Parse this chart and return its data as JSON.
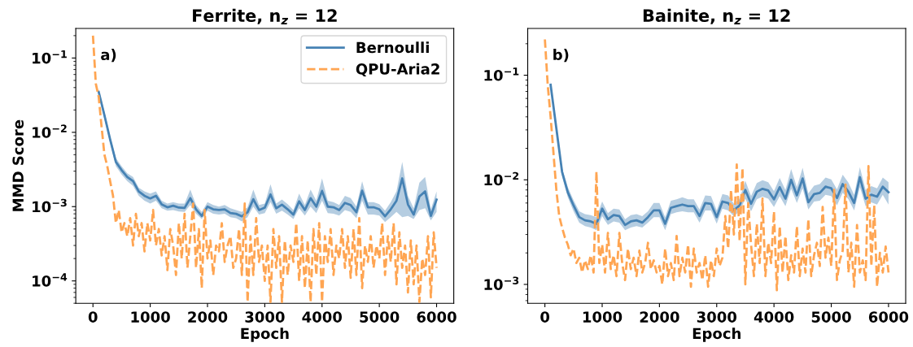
{
  "chart_data": [
    {
      "type": "line",
      "title": "Ferrite, n$_{z}$ = 12",
      "xlabel": "Epoch",
      "ylabel": "MMD Score",
      "annotations": [
        "a)"
      ],
      "log": "y",
      "legend": "top right",
      "grid": false,
      "xlim": [
        -300,
        6300
      ],
      "xticks": [
        0,
        1000,
        2000,
        3000,
        4000,
        5000,
        6000
      ],
      "ylim": [
        5e-05,
        0.25
      ],
      "yticks": [
        {
          "value": 0.1,
          "label": "10$^{−1}$"
        },
        {
          "value": 0.01,
          "label": "10$^{−2}$"
        },
        {
          "value": 0.001,
          "label": "10$^{−3}$"
        },
        {
          "value": 0.0001,
          "label": "10$^{−4}$"
        }
      ],
      "series": [
        {
          "name": "Bernoulli",
          "color": "#4682b4",
          "line_style": "solid",
          "x": [
            100,
            200,
            300,
            400,
            500,
            600,
            700,
            800,
            900,
            1000,
            1100,
            1200,
            1300,
            1400,
            1500,
            1600,
            1700,
            1800,
            1900,
            2000,
            2100,
            2200,
            2300,
            2400,
            2500,
            2600,
            2700,
            2800,
            2900,
            3000,
            3100,
            3200,
            3300,
            3400,
            3500,
            3600,
            3700,
            3800,
            3900,
            4000,
            4100,
            4200,
            4300,
            4400,
            4500,
            4600,
            4700,
            4800,
            4900,
            5000,
            5100,
            5200,
            5300,
            5400,
            5500,
            5600,
            5700,
            5800,
            5900,
            6000
          ],
          "values": [
            0.035,
            0.017,
            0.008,
            0.004,
            0.0031,
            0.0025,
            0.0022,
            0.0016,
            0.0014,
            0.00129,
            0.0014,
            0.00107,
            0.00098,
            0.00103,
            0.00097,
            0.00096,
            0.0013,
            0.00092,
            0.00075,
            0.001,
            0.00092,
            0.0009,
            0.00092,
            0.00082,
            0.0008,
            0.00074,
            0.00084,
            0.00126,
            0.0009,
            0.00097,
            0.00146,
            0.00095,
            0.00106,
            0.00092,
            0.00078,
            0.00118,
            0.0009,
            0.0013,
            0.001,
            0.00163,
            0.001,
            0.00098,
            0.0009,
            0.00112,
            0.00105,
            0.00084,
            0.00164,
            0.00098,
            0.00098,
            0.00092,
            0.00074,
            0.00092,
            0.0012,
            0.0024,
            0.00107,
            0.00078,
            0.00137,
            0.0016,
            0.00075,
            0.00124
          ],
          "lower": [
            0.032,
            0.015,
            0.0072,
            0.0035,
            0.0027,
            0.0022,
            0.0019,
            0.0014,
            0.0012,
            0.0011,
            0.0012,
            0.00095,
            0.00088,
            0.0009,
            0.00086,
            0.00085,
            0.00105,
            0.0008,
            0.00068,
            0.00088,
            0.0008,
            0.00078,
            0.0008,
            0.00072,
            0.0007,
            0.00063,
            0.00072,
            0.001,
            0.00078,
            0.00082,
            0.00115,
            0.0008,
            0.00088,
            0.00078,
            0.00068,
            0.00095,
            0.00076,
            0.001,
            0.00082,
            0.0012,
            0.00082,
            0.0008,
            0.00076,
            0.0009,
            0.00085,
            0.0007,
            0.0012,
            0.00078,
            0.00078,
            0.00076,
            0.00062,
            0.00072,
            0.00085,
            0.00072,
            0.00075,
            0.00068,
            0.0009,
            0.00095,
            0.00065,
            0.00085
          ],
          "upper": [
            0.038,
            0.019,
            0.0088,
            0.0045,
            0.0035,
            0.0028,
            0.0025,
            0.0018,
            0.0016,
            0.0015,
            0.0016,
            0.0012,
            0.0011,
            0.00115,
            0.0011,
            0.0011,
            0.0017,
            0.00105,
            0.00085,
            0.00115,
            0.00105,
            0.001,
            0.00105,
            0.00095,
            0.0009,
            0.00085,
            0.00098,
            0.0017,
            0.00105,
            0.0011,
            0.002,
            0.0011,
            0.00125,
            0.00108,
            0.0009,
            0.0015,
            0.00105,
            0.0017,
            0.0012,
            0.0024,
            0.0012,
            0.00115,
            0.00105,
            0.0014,
            0.0013,
            0.001,
            0.0022,
            0.00115,
            0.00115,
            0.00108,
            0.00088,
            0.00115,
            0.0016,
            0.004,
            0.0014,
            0.00095,
            0.0021,
            0.0025,
            0.00092,
            0.0016
          ]
        },
        {
          "name": "QPU-Aria2",
          "color": "#ffa552",
          "line_style": "dashed",
          "x": [
            0,
            50,
            100,
            150,
            200,
            250,
            300,
            350,
            400,
            450,
            500,
            550,
            600,
            650,
            700,
            750,
            800,
            850,
            900,
            950,
            1000,
            1050,
            1100,
            1150,
            1200,
            1250,
            1300,
            1350,
            1400,
            1450,
            1500,
            1550,
            1600,
            1650,
            1700,
            1750,
            1800,
            1850,
            1900,
            1950,
            2000,
            2050,
            2100,
            2150,
            2200,
            2250,
            2300,
            2350,
            2400,
            2450,
            2500,
            2550,
            2600,
            2650,
            2700,
            2750,
            2800,
            2850,
            2900,
            2950,
            3000,
            3050,
            3100,
            3150,
            3200,
            3250,
            3300,
            3350,
            3400,
            3450,
            3500,
            3550,
            3600,
            3650,
            3700,
            3750,
            3800,
            3850,
            3900,
            3950,
            4000,
            4050,
            4100,
            4150,
            4200,
            4250,
            4300,
            4350,
            4400,
            4450,
            4500,
            4550,
            4600,
            4650,
            4700,
            4750,
            4800,
            4850,
            4900,
            4950,
            5000,
            5050,
            5100,
            5150,
            5200,
            5250,
            5300,
            5350,
            5400,
            5450,
            5500,
            5550,
            5600,
            5650,
            5700,
            5750,
            5800,
            5850,
            5900,
            5950,
            6000
          ],
          "values": [
            0.2,
            0.045,
            0.03,
            0.012,
            0.005,
            0.0035,
            0.0022,
            0.0014,
            0.0006,
            0.0009,
            0.00045,
            0.0006,
            0.0004,
            0.0007,
            0.0003,
            0.0008,
            0.0004,
            0.0006,
            0.00025,
            0.0006,
            0.00035,
            0.0009,
            0.0003,
            0.0005,
            0.00022,
            0.0004,
            0.00014,
            0.0005,
            0.0003,
            0.00012,
            0.0006,
            0.0002,
            0.0008,
            0.00015,
            0.0004,
            0.0011,
            0.00015,
            0.0005,
            8e-05,
            0.0009,
            0.0002,
            0.00035,
            0.00012,
            0.0003,
            0.00025,
            0.0006,
            0.00018,
            0.0003,
            0.0004,
            0.00015,
            0.0002,
            0.0005,
            0.00012,
            0.0011,
            5.2e-05,
            0.0004,
            0.00012,
            0.0007,
            0.00018,
            0.0003,
            0.0001,
            0.0003,
            5.2e-05,
            0.0005,
            0.00015,
            0.0004,
            5.2e-05,
            0.00035,
            0.00012,
            0.0003,
            0.00018,
            0.0006,
            0.0001,
            0.0004,
            8e-05,
            0.00035,
            5.2e-05,
            0.0005,
            0.00012,
            0.0006,
            5.2e-05,
            0.0004,
            0.00018,
            0.0005,
            0.00012,
            0.0003,
            0.0002,
            0.0005,
            0.00015,
            0.0004,
            0.00011,
            0.0005,
            0.00012,
            0.0007,
            8e-05,
            0.0003,
            0.00018,
            0.0004,
            0.00015,
            0.0003,
            0.0002,
            0.0006,
            0.00012,
            0.0004,
            0.00018,
            0.0006,
            9e-05,
            0.00045,
            0.00015,
            0.0003,
            7e-05,
            0.00035,
            9e-05,
            0.0003,
            5.2e-05,
            0.0002,
            0.00012,
            0.0004,
            6e-05,
            0.00045,
            0.00015
          ]
        }
      ]
    },
    {
      "type": "line",
      "title": "Bainite, n$_{z}$ = 12",
      "xlabel": "Epoch",
      "annotations": [
        "b)"
      ],
      "log": "y",
      "grid": false,
      "xlim": [
        -300,
        6300
      ],
      "xticks": [
        0,
        1000,
        2000,
        3000,
        4000,
        5000,
        6000
      ],
      "ylim": [
        0.00066,
        0.28
      ],
      "yticks": [
        {
          "value": 0.1,
          "label": "10$^{−1}$"
        },
        {
          "value": 0.01,
          "label": "10$^{−2}$"
        },
        {
          "value": 0.001,
          "label": "10$^{−3}$"
        }
      ],
      "series": [
        {
          "color": "#4682b4",
          "line_style": "solid",
          "x": [
            100,
            200,
            300,
            400,
            500,
            600,
            700,
            800,
            900,
            1000,
            1100,
            1200,
            1300,
            1400,
            1500,
            1600,
            1700,
            1800,
            1900,
            2000,
            2100,
            2200,
            2300,
            2400,
            2500,
            2600,
            2700,
            2800,
            2900,
            3000,
            3100,
            3200,
            3300,
            3400,
            3500,
            3600,
            3700,
            3800,
            3900,
            4000,
            4100,
            4200,
            4300,
            4400,
            4500,
            4600,
            4700,
            4800,
            4900,
            5000,
            5100,
            5200,
            5300,
            5400,
            5500,
            5600,
            5700,
            5800,
            5900,
            6000
          ],
          "values": [
            0.081,
            0.031,
            0.0119,
            0.0076,
            0.0057,
            0.0044,
            0.0041,
            0.004,
            0.0038,
            0.0053,
            0.0042,
            0.0046,
            0.0045,
            0.0037,
            0.004,
            0.0041,
            0.0039,
            0.0044,
            0.0051,
            0.0051,
            0.0038,
            0.0054,
            0.0056,
            0.0058,
            0.0056,
            0.0056,
            0.0045,
            0.006,
            0.0059,
            0.0044,
            0.0062,
            0.006,
            0.0051,
            0.0057,
            0.008,
            0.0059,
            0.0077,
            0.0082,
            0.0079,
            0.0065,
            0.0085,
            0.0066,
            0.01,
            0.0071,
            0.0103,
            0.0061,
            0.0073,
            0.0075,
            0.0086,
            0.0083,
            0.0067,
            0.0091,
            0.0077,
            0.006,
            0.0106,
            0.0066,
            0.0072,
            0.0069,
            0.0086,
            0.0076
          ],
          "lower": [
            0.075,
            0.028,
            0.0108,
            0.0068,
            0.005,
            0.0039,
            0.0036,
            0.0035,
            0.0033,
            0.0045,
            0.0037,
            0.004,
            0.0039,
            0.0033,
            0.0035,
            0.0036,
            0.0035,
            0.0039,
            0.0044,
            0.0044,
            0.0033,
            0.0047,
            0.0049,
            0.005,
            0.0049,
            0.0049,
            0.0039,
            0.0051,
            0.0051,
            0.0038,
            0.0053,
            0.0051,
            0.0045,
            0.005,
            0.0066,
            0.005,
            0.0065,
            0.0069,
            0.0066,
            0.0055,
            0.007,
            0.0056,
            0.0082,
            0.006,
            0.0083,
            0.0052,
            0.0062,
            0.0063,
            0.0072,
            0.007,
            0.0057,
            0.0075,
            0.0065,
            0.0051,
            0.0085,
            0.0056,
            0.0061,
            0.0058,
            0.0072,
            0.0058
          ],
          "upper": [
            0.088,
            0.034,
            0.013,
            0.0085,
            0.0064,
            0.005,
            0.0047,
            0.0046,
            0.0044,
            0.0062,
            0.0048,
            0.0053,
            0.0052,
            0.0042,
            0.0046,
            0.0047,
            0.0045,
            0.005,
            0.006,
            0.006,
            0.0044,
            0.0063,
            0.0065,
            0.0068,
            0.0065,
            0.0065,
            0.0052,
            0.0071,
            0.007,
            0.0051,
            0.0073,
            0.0071,
            0.0059,
            0.0066,
            0.0098,
            0.007,
            0.0093,
            0.0099,
            0.0095,
            0.0078,
            0.0104,
            0.008,
            0.0127,
            0.0085,
            0.013,
            0.0074,
            0.0088,
            0.0091,
            0.0105,
            0.0101,
            0.0081,
            0.0112,
            0.0094,
            0.0072,
            0.0132,
            0.008,
            0.0087,
            0.0083,
            0.0105,
            0.0095
          ]
        },
        {
          "color": "#ffa552",
          "line_style": "dashed",
          "x": [
            0,
            50,
            100,
            150,
            200,
            250,
            300,
            350,
            400,
            450,
            500,
            550,
            600,
            650,
            700,
            750,
            800,
            850,
            900,
            950,
            1000,
            1050,
            1100,
            1150,
            1200,
            1250,
            1300,
            1350,
            1400,
            1450,
            1500,
            1550,
            1600,
            1650,
            1700,
            1750,
            1800,
            1850,
            1900,
            1950,
            2000,
            2050,
            2100,
            2150,
            2200,
            2250,
            2300,
            2350,
            2400,
            2450,
            2500,
            2550,
            2600,
            2650,
            2700,
            2750,
            2800,
            2850,
            2900,
            2950,
            3000,
            3050,
            3100,
            3150,
            3200,
            3250,
            3300,
            3350,
            3400,
            3450,
            3500,
            3550,
            3600,
            3650,
            3700,
            3750,
            3800,
            3850,
            3900,
            3950,
            4000,
            4050,
            4100,
            4150,
            4200,
            4250,
            4300,
            4350,
            4400,
            4450,
            4500,
            4550,
            4600,
            4650,
            4700,
            4750,
            4800,
            4850,
            4900,
            4950,
            5000,
            5050,
            5100,
            5150,
            5200,
            5250,
            5300,
            5350,
            5400,
            5450,
            5500,
            5550,
            5600,
            5650,
            5700,
            5750,
            5800,
            5850,
            5900,
            5950,
            6000
          ],
          "values": [
            0.22,
            0.08,
            0.04,
            0.018,
            0.008,
            0.0045,
            0.0035,
            0.0028,
            0.0024,
            0.0019,
            0.0022,
            0.0016,
            0.0018,
            0.0013,
            0.0017,
            0.0014,
            0.0019,
            0.0013,
            0.012,
            0.0016,
            0.0024,
            0.0013,
            0.0031,
            0.0014,
            0.0019,
            0.0012,
            0.0031,
            0.0016,
            0.0011,
            0.0022,
            0.0014,
            0.0018,
            0.0012,
            0.0021,
            0.0013,
            0.0016,
            0.0025,
            0.0014,
            0.0017,
            0.0013,
            0.0015,
            0.001,
            0.0022,
            0.0012,
            0.0016,
            0.0011,
            0.0029,
            0.0012,
            0.0018,
            0.0013,
            0.0024,
            0.00095,
            0.0022,
            0.0013,
            0.0016,
            0.0011,
            0.0019,
            0.00095,
            0.0017,
            0.0012,
            0.0022,
            0.0015,
            0.0018,
            0.0045,
            0.0022,
            0.008,
            0.003,
            0.014,
            0.0026,
            0.013,
            0.001,
            0.006,
            0.0024,
            0.0012,
            0.0038,
            0.0016,
            0.0066,
            0.0012,
            0.0025,
            0.0016,
            0.005,
            0.00088,
            0.0036,
            0.0013,
            0.0029,
            0.0011,
            0.0019,
            0.0013,
            0.0036,
            0.0012,
            0.0022,
            0.0013,
            0.0042,
            0.0012,
            0.0019,
            0.0025,
            0.0015,
            0.0055,
            0.0018,
            0.0028,
            0.0015,
            0.008,
            0.0011,
            0.0017,
            0.0021,
            0.009,
            0.0013,
            0.0025,
            0.00095,
            0.0037,
            0.0013,
            0.0017,
            0.0011,
            0.0135,
            0.0015,
            0.0057,
            0.00095,
            0.002,
            0.0013,
            0.0023,
            0.0013
          ]
        }
      ]
    }
  ]
}
